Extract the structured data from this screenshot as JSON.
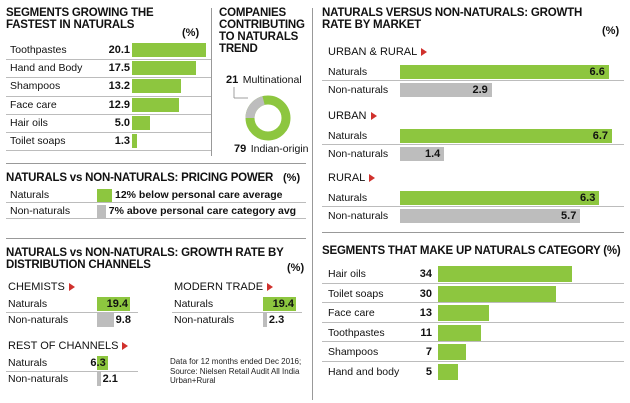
{
  "chart_data": [
    {
      "type": "bar",
      "title": "SEGMENTS GROWING THE FASTEST IN NATURALS",
      "unit": "(%)",
      "categories": [
        "Toothpastes",
        "Hand and Body",
        "Shampoos",
        "Face care",
        "Hair oils",
        "Toilet soaps"
      ],
      "values": [
        20.1,
        17.5,
        13.2,
        12.9,
        5.0,
        1.3
      ],
      "value_labels": [
        "20.1",
        "17.5",
        "13.2",
        "12.9",
        "5.0",
        "1.3"
      ]
    },
    {
      "type": "pie",
      "title": "COMPANIES CONTRIBUTING TO NATURALS TREND",
      "slices": [
        {
          "name": "Multinational",
          "value": 21
        },
        {
          "name": "Indian-origin",
          "value": 79
        }
      ],
      "colors": {
        "Multinational": "#bdbdbd",
        "Indian-origin": "#8dc63f"
      }
    },
    {
      "type": "bar",
      "title": "NATURALS VERSUS NON-NATURALS: GROWTH RATE BY MARKET",
      "unit": "(%)",
      "groups": [
        {
          "name": "URBAN & RURAL",
          "naturals": 6.6,
          "non_naturals": 2.9,
          "naturals_label": "6.6",
          "non_naturals_label": "2.9"
        },
        {
          "name": "URBAN",
          "naturals": 6.7,
          "non_naturals": 1.4,
          "naturals_label": "6.7",
          "non_naturals_label": "1.4"
        },
        {
          "name": "RURAL",
          "naturals": 6.3,
          "non_naturals": 5.7,
          "naturals_label": "6.3",
          "non_naturals_label": "5.7"
        }
      ],
      "series": [
        {
          "name": "Naturals"
        },
        {
          "name": "Non-naturals"
        }
      ]
    },
    {
      "type": "bar",
      "title": "NATURALS vs NON-NATURALS: PRICING POWER",
      "unit": "(%)",
      "categories": [
        "Naturals",
        "Non-naturals"
      ],
      "annotations": [
        "12% below personal care average",
        "7% above personal care category avg"
      ],
      "values": [
        12,
        7
      ]
    },
    {
      "type": "bar",
      "title": "NATURALS vs NON-NATURALS: GROWTH RATE BY DISTRIBUTION CHANNELS",
      "unit": "(%)",
      "groups": [
        {
          "name": "CHEMISTS",
          "naturals": 19.4,
          "non_naturals": 9.8,
          "naturals_label": "19.4",
          "non_naturals_label": "9.8"
        },
        {
          "name": "MODERN TRADE",
          "naturals": 19.4,
          "non_naturals": 2.3,
          "naturals_label": "19.4",
          "non_naturals_label": "2.3"
        },
        {
          "name": "REST OF CHANNELS",
          "naturals": 6.3,
          "non_naturals": 2.1,
          "naturals_label": "6.3",
          "non_naturals_label": "2.1"
        }
      ],
      "series": [
        {
          "name": "Naturals"
        },
        {
          "name": "Non-naturals"
        }
      ]
    },
    {
      "type": "bar",
      "title": "SEGMENTS THAT MAKE UP NATURALS CATEGORY (%)",
      "categories": [
        "Hair oils",
        "Toilet soaps",
        "Face care",
        "Toothpastes",
        "Shampoos",
        "Hand and body"
      ],
      "values": [
        34,
        30,
        13,
        11,
        7,
        5
      ],
      "value_labels": [
        "34",
        "30",
        "13",
        "11",
        "7",
        "5"
      ]
    }
  ],
  "labels": {
    "naturals": "Naturals",
    "non_naturals": "Non-naturals",
    "pie_multinational": "Multinational",
    "pie_indian": "Indian-origin",
    "pie_mn_value": "21",
    "pie_in_value": "79"
  },
  "source_note": "Data for 12 months ended Dec 2016; Source: Nielsen Retail Audit All India Urban+Rural",
  "colors": {
    "naturals": "#8dc63f",
    "non_naturals": "#bdbdbd",
    "marker": "#d0312d"
  }
}
